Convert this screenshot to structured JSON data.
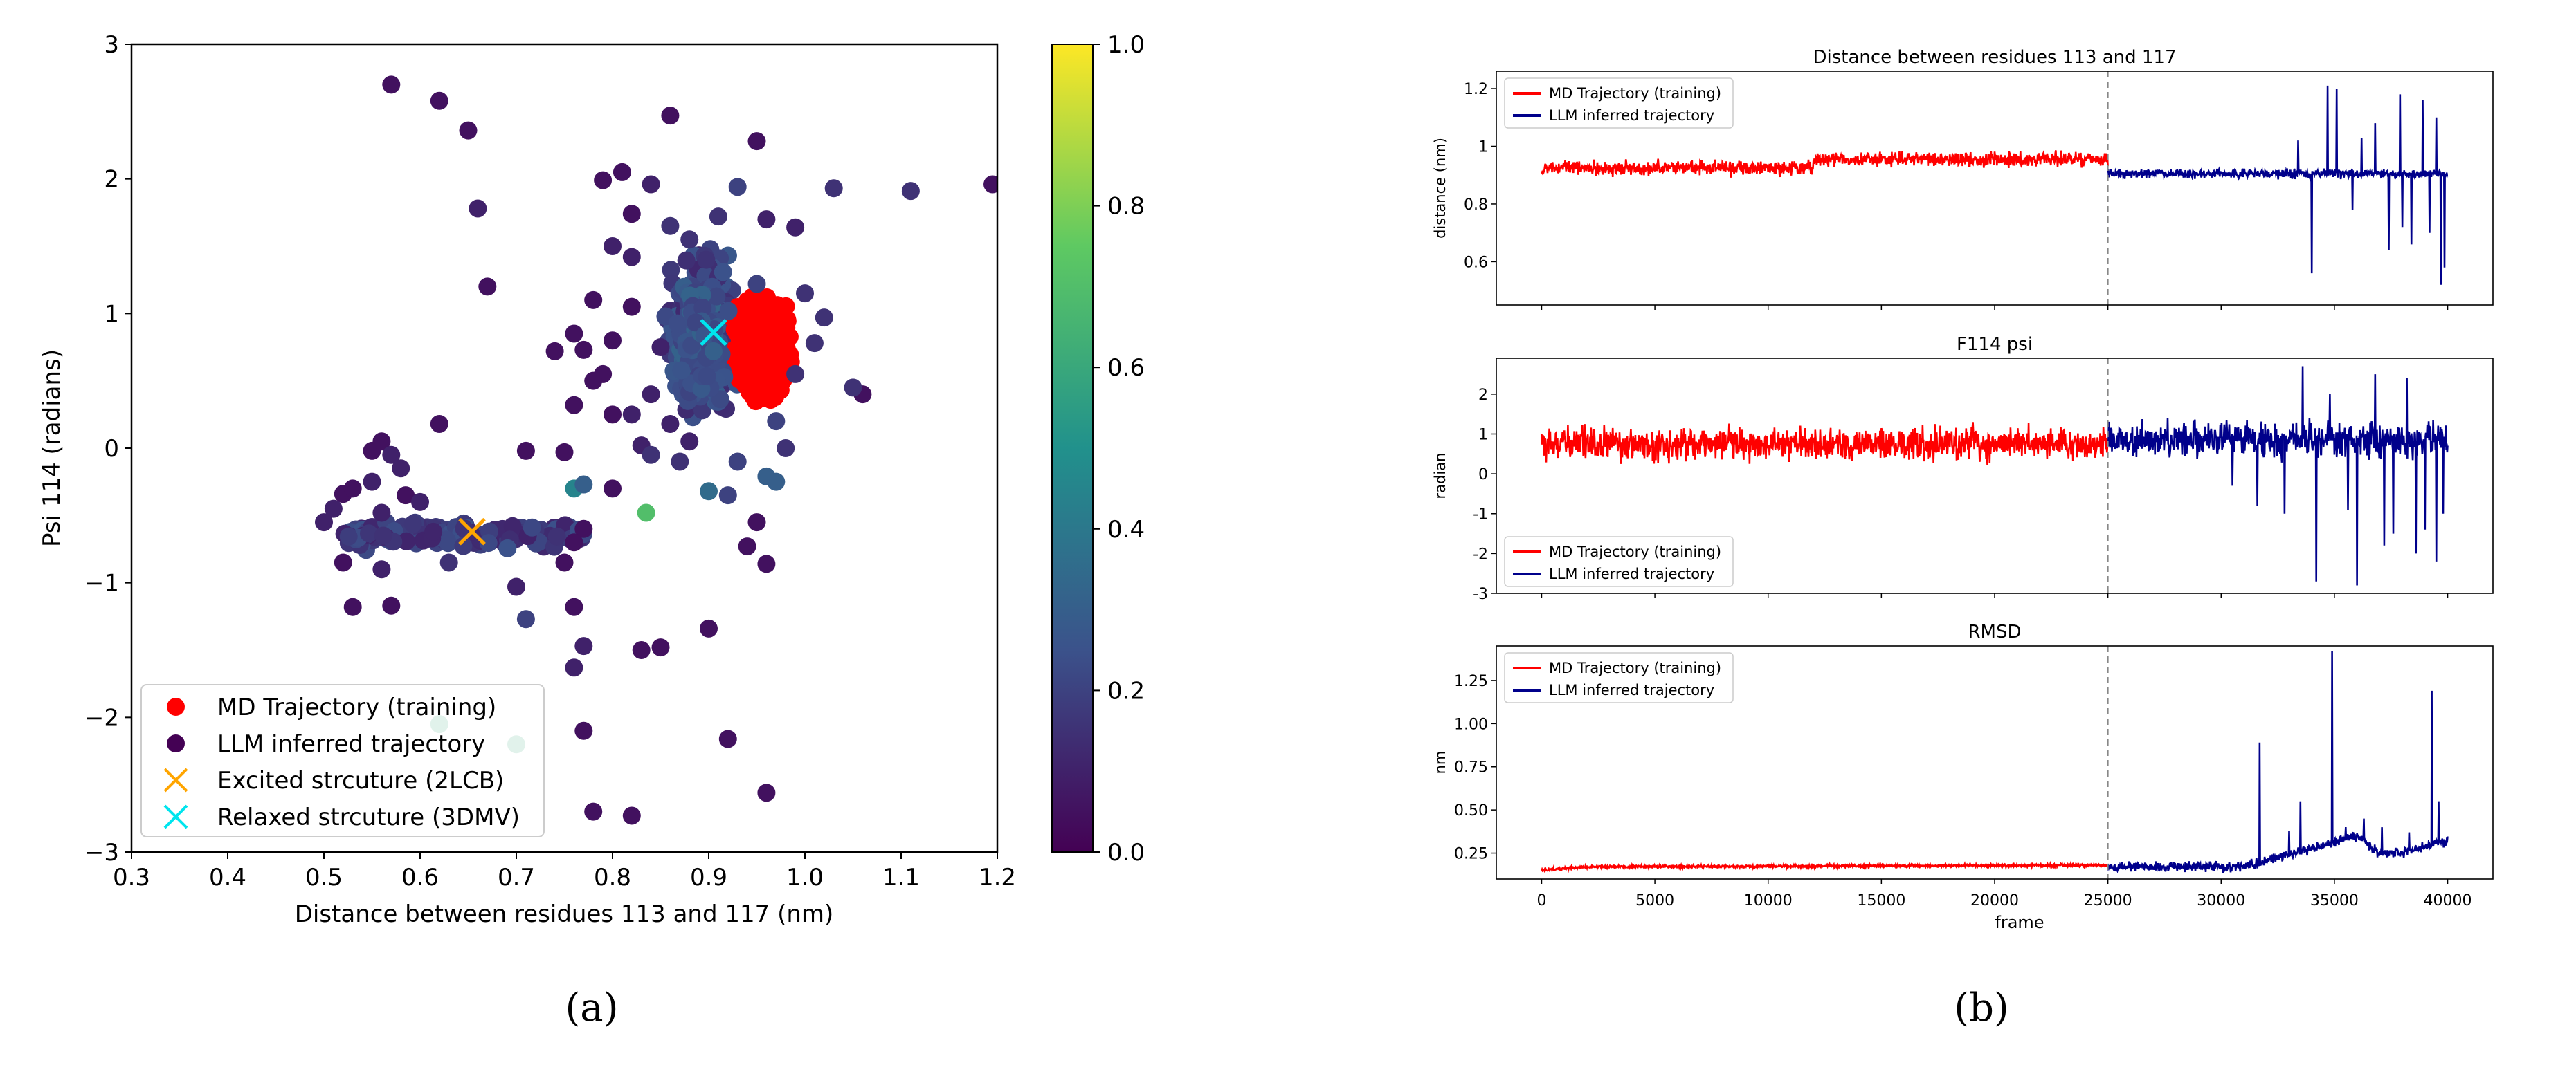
{
  "chart_data": [
    {
      "type": "scatter",
      "panel": "a",
      "caption": "(a)",
      "xlabel": "Distance between residues 113 and 117 (nm)",
      "ylabel": "Psi 114 (radians)",
      "xlim": [
        0.3,
        1.2
      ],
      "ylim": [
        -3,
        3
      ],
      "xticks": [
        "0.3",
        "0.4",
        "0.5",
        "0.6",
        "0.7",
        "0.8",
        "0.9",
        "1.0",
        "1.1",
        "1.2"
      ],
      "yticks": [
        "−3",
        "−2",
        "−1",
        "0",
        "1",
        "2",
        "3"
      ],
      "colorbar": {
        "range": [
          0.0,
          1.0
        ],
        "colormap": "viridis",
        "ticks": [
          "0.0",
          "0.2",
          "0.4",
          "0.6",
          "0.8",
          "1.0"
        ]
      },
      "legend_position": "lower-left",
      "legend": [
        {
          "label": "MD Trajectory (training)",
          "marker": "dot",
          "color": "#ff0000"
        },
        {
          "label": "LLM inferred trajectory",
          "marker": "dot",
          "color": "#440154"
        },
        {
          "label": "Excited strcuture (2LCB)",
          "marker": "x",
          "color": "#ffa500"
        },
        {
          "label": "Relaxed strcuture (3DMV)",
          "marker": "x",
          "color": "#00e5ee"
        }
      ],
      "md_cluster": {
        "x_range": [
          0.88,
          1.02
        ],
        "y_range": [
          -0.1,
          1.4
        ],
        "color": "#ff0000"
      },
      "markers": [
        {
          "name": "Excited strcuture (2LCB)",
          "x": 0.654,
          "y": -0.62,
          "color": "#ffa500"
        },
        {
          "name": "Relaxed strcuture (3DMV)",
          "x": 0.905,
          "y": 0.86,
          "color": "#00e5ee"
        }
      ],
      "llm_points": [
        {
          "x": 0.57,
          "y": 2.7,
          "c": 0.05
        },
        {
          "x": 0.62,
          "y": 2.58,
          "c": 0.05
        },
        {
          "x": 0.65,
          "y": 2.36,
          "c": 0.05
        },
        {
          "x": 0.66,
          "y": 1.78,
          "c": 0.1
        },
        {
          "x": 0.67,
          "y": 1.2,
          "c": 0.05
        },
        {
          "x": 0.86,
          "y": 2.47,
          "c": 0.05
        },
        {
          "x": 0.95,
          "y": 2.28,
          "c": 0.05
        },
        {
          "x": 1.11,
          "y": 1.91,
          "c": 0.15
        },
        {
          "x": 1.195,
          "y": 1.96,
          "c": 0.05
        },
        {
          "x": 1.03,
          "y": 1.93,
          "c": 0.15
        },
        {
          "x": 0.99,
          "y": 1.64,
          "c": 0.1
        },
        {
          "x": 1.06,
          "y": 0.4,
          "c": 0.05
        },
        {
          "x": 1.05,
          "y": 0.45,
          "c": 0.15
        },
        {
          "x": 1.02,
          "y": 0.97,
          "c": 0.15
        },
        {
          "x": 0.62,
          "y": 0.18,
          "c": 0.05
        },
        {
          "x": 0.74,
          "y": 0.72,
          "c": 0.05
        },
        {
          "x": 0.76,
          "y": 0.85,
          "c": 0.05
        },
        {
          "x": 0.77,
          "y": 0.73,
          "c": 0.05
        },
        {
          "x": 0.76,
          "y": 0.32,
          "c": 0.05
        },
        {
          "x": 0.79,
          "y": 0.55,
          "c": 0.05
        },
        {
          "x": 0.8,
          "y": 0.25,
          "c": 0.05
        },
        {
          "x": 0.71,
          "y": -0.02,
          "c": 0.05
        },
        {
          "x": 0.75,
          "y": -0.03,
          "c": 0.05
        },
        {
          "x": 0.8,
          "y": -0.3,
          "c": 0.05
        },
        {
          "x": 0.76,
          "y": -0.3,
          "c": 0.45
        },
        {
          "x": 0.835,
          "y": -0.48,
          "c": 0.7
        },
        {
          "x": 0.77,
          "y": -0.27,
          "c": 0.3
        },
        {
          "x": 0.9,
          "y": -0.32,
          "c": 0.35
        },
        {
          "x": 0.92,
          "y": -0.35,
          "c": 0.2
        },
        {
          "x": 0.96,
          "y": -0.21,
          "c": 0.3
        },
        {
          "x": 0.97,
          "y": -0.25,
          "c": 0.3
        },
        {
          "x": 0.95,
          "y": -0.55,
          "c": 0.05
        },
        {
          "x": 0.96,
          "y": -0.86,
          "c": 0.05
        },
        {
          "x": 0.94,
          "y": -0.73,
          "c": 0.05
        },
        {
          "x": 0.77,
          "y": -0.6,
          "c": 0.05
        },
        {
          "x": 0.76,
          "y": -0.7,
          "c": 0.05
        },
        {
          "x": 0.75,
          "y": -0.85,
          "c": 0.05
        },
        {
          "x": 0.7,
          "y": -1.03,
          "c": 0.1
        },
        {
          "x": 0.71,
          "y": -1.27,
          "c": 0.2
        },
        {
          "x": 0.76,
          "y": -1.63,
          "c": 0.1
        },
        {
          "x": 0.77,
          "y": -1.47,
          "c": 0.1
        },
        {
          "x": 0.76,
          "y": -1.18,
          "c": 0.05
        },
        {
          "x": 0.83,
          "y": -1.5,
          "c": 0.05
        },
        {
          "x": 0.85,
          "y": -1.48,
          "c": 0.05
        },
        {
          "x": 0.9,
          "y": -1.34,
          "c": 0.05
        },
        {
          "x": 0.77,
          "y": -2.1,
          "c": 0.05
        },
        {
          "x": 0.92,
          "y": -2.16,
          "c": 0.05
        },
        {
          "x": 0.62,
          "y": -2.05,
          "c": 0.6
        },
        {
          "x": 0.7,
          "y": -2.2,
          "c": 0.6
        },
        {
          "x": 0.82,
          "y": -2.73,
          "c": 0.05
        },
        {
          "x": 0.78,
          "y": -2.7,
          "c": 0.05
        },
        {
          "x": 0.96,
          "y": -2.56,
          "c": 0.05
        },
        {
          "x": 0.53,
          "y": -1.18,
          "c": 0.05
        },
        {
          "x": 0.57,
          "y": -1.17,
          "c": 0.05
        },
        {
          "x": 0.63,
          "y": -0.85,
          "c": 0.15
        },
        {
          "x": 0.52,
          "y": -0.85,
          "c": 0.05
        },
        {
          "x": 0.56,
          "y": -0.9,
          "c": 0.1
        },
        {
          "x": 0.585,
          "y": -0.35,
          "c": 0.05
        },
        {
          "x": 0.6,
          "y": -0.4,
          "c": 0.1
        },
        {
          "x": 0.52,
          "y": -0.34,
          "c": 0.05
        },
        {
          "x": 0.53,
          "y": -0.3,
          "c": 0.05
        },
        {
          "x": 0.55,
          "y": -0.02,
          "c": 0.05
        },
        {
          "x": 0.56,
          "y": 0.05,
          "c": 0.05
        },
        {
          "x": 0.57,
          "y": -0.05,
          "c": 0.1
        },
        {
          "x": 0.5,
          "y": -0.55,
          "c": 0.1
        },
        {
          "x": 0.51,
          "y": -0.45,
          "c": 0.1
        },
        {
          "x": 0.55,
          "y": -0.25,
          "c": 0.1
        },
        {
          "x": 0.56,
          "y": -0.48,
          "c": 0.1
        },
        {
          "x": 0.58,
          "y": -0.15,
          "c": 0.1
        },
        {
          "x": 0.83,
          "y": 0.02,
          "c": 0.1
        },
        {
          "x": 0.82,
          "y": 0.25,
          "c": 0.1
        },
        {
          "x": 0.84,
          "y": -0.05,
          "c": 0.15
        },
        {
          "x": 0.86,
          "y": 0.18,
          "c": 0.1
        },
        {
          "x": 0.87,
          "y": -0.1,
          "c": 0.15
        },
        {
          "x": 0.88,
          "y": 0.05,
          "c": 0.1
        },
        {
          "x": 0.79,
          "y": 1.99,
          "c": 0.05
        },
        {
          "x": 0.81,
          "y": 2.05,
          "c": 0.05
        },
        {
          "x": 0.82,
          "y": 1.74,
          "c": 0.05
        },
        {
          "x": 0.93,
          "y": 1.94,
          "c": 0.2
        },
        {
          "x": 0.91,
          "y": 1.72,
          "c": 0.15
        },
        {
          "x": 0.84,
          "y": 1.96,
          "c": 0.1
        },
        {
          "x": 0.86,
          "y": 1.65,
          "c": 0.15
        },
        {
          "x": 0.88,
          "y": 1.55,
          "c": 0.15
        },
        {
          "x": 0.96,
          "y": 1.7,
          "c": 0.1
        },
        {
          "x": 0.8,
          "y": 1.5,
          "c": 0.1
        },
        {
          "x": 0.82,
          "y": 1.42,
          "c": 0.1
        },
        {
          "x": 0.95,
          "y": 1.22,
          "c": 0.2
        },
        {
          "x": 1.0,
          "y": 1.15,
          "c": 0.15
        },
        {
          "x": 1.01,
          "y": 0.78,
          "c": 0.15
        },
        {
          "x": 0.99,
          "y": 0.55,
          "c": 0.15
        },
        {
          "x": 0.97,
          "y": 0.2,
          "c": 0.2
        },
        {
          "x": 0.98,
          "y": 0.0,
          "c": 0.15
        },
        {
          "x": 0.93,
          "y": -0.1,
          "c": 0.2
        },
        {
          "x": 0.78,
          "y": 0.5,
          "c": 0.05
        },
        {
          "x": 0.8,
          "y": 0.8,
          "c": 0.05
        },
        {
          "x": 0.82,
          "y": 1.05,
          "c": 0.05
        },
        {
          "x": 0.78,
          "y": 1.1,
          "c": 0.05
        },
        {
          "x": 0.85,
          "y": 0.75,
          "c": 0.1
        },
        {
          "x": 0.84,
          "y": 0.4,
          "c": 0.1
        }
      ]
    },
    {
      "type": "line",
      "panel": "b",
      "caption": "(b)",
      "xlabel": "frame",
      "xlim": [
        -2000,
        42000
      ],
      "xticks": [
        0,
        5000,
        10000,
        15000,
        20000,
        25000,
        30000,
        35000,
        40000
      ],
      "split_frame": 25000,
      "series_colors": {
        "md": "#ff0000",
        "llm": "#00008b"
      },
      "subplots": [
        {
          "title": "Distance between residues 113 and 117",
          "ylabel": "distance (nm)",
          "ylim": [
            0.45,
            1.26
          ],
          "yticks": [
            0.6,
            0.8,
            1.0,
            1.2
          ],
          "legend_position": "upper-left",
          "legend": [
            "MD Trajectory (training)",
            "LLM inferred trajectory"
          ],
          "md_profile": [
            {
              "x": 0,
              "y": 0.925
            },
            {
              "x": 12000,
              "y": 0.925
            },
            {
              "x": 12000,
              "y": 0.955
            },
            {
              "x": 25000,
              "y": 0.955
            }
          ],
          "md_noise": 0.035,
          "llm_profile": [
            {
              "x": 25000,
              "y": 0.905
            },
            {
              "x": 40000,
              "y": 0.905
            }
          ],
          "llm_noise": 0.022,
          "llm_spikes": [
            {
              "x": 34000,
              "y": 0.56
            },
            {
              "x": 34700,
              "y": 1.21
            },
            {
              "x": 35100,
              "y": 1.2
            },
            {
              "x": 35800,
              "y": 0.78
            },
            {
              "x": 36800,
              "y": 1.08
            },
            {
              "x": 37400,
              "y": 0.64
            },
            {
              "x": 37900,
              "y": 1.18
            },
            {
              "x": 38400,
              "y": 0.66
            },
            {
              "x": 38900,
              "y": 1.16
            },
            {
              "x": 39200,
              "y": 0.7
            },
            {
              "x": 39500,
              "y": 1.1
            },
            {
              "x": 39700,
              "y": 0.52
            },
            {
              "x": 39850,
              "y": 0.58
            },
            {
              "x": 33400,
              "y": 1.02
            },
            {
              "x": 36200,
              "y": 1.03
            },
            {
              "x": 38000,
              "y": 0.72
            }
          ]
        },
        {
          "title": "F114 psi",
          "ylabel": "radian",
          "ylim": [
            -3,
            2.9
          ],
          "yticks": [
            -3,
            -2,
            -1,
            0,
            1,
            2
          ],
          "legend_position": "lower-left",
          "legend": [
            "MD Trajectory (training)",
            "LLM inferred trajectory"
          ],
          "md_profile": [
            {
              "x": 0,
              "y": 0.75
            },
            {
              "x": 25000,
              "y": 0.75
            }
          ],
          "md_noise": 0.6,
          "llm_profile": [
            {
              "x": 25000,
              "y": 0.85
            },
            {
              "x": 40000,
              "y": 0.85
            }
          ],
          "llm_noise": 0.6,
          "llm_spikes": [
            {
              "x": 31600,
              "y": -0.8
            },
            {
              "x": 32800,
              "y": -1.0
            },
            {
              "x": 33600,
              "y": 2.7
            },
            {
              "x": 34200,
              "y": -2.7
            },
            {
              "x": 35600,
              "y": -0.9
            },
            {
              "x": 36000,
              "y": -2.8
            },
            {
              "x": 36800,
              "y": 2.5
            },
            {
              "x": 37600,
              "y": -1.5
            },
            {
              "x": 38200,
              "y": 2.4
            },
            {
              "x": 38600,
              "y": -2.0
            },
            {
              "x": 39000,
              "y": -1.4
            },
            {
              "x": 39500,
              "y": -2.2
            },
            {
              "x": 39800,
              "y": -1.0
            },
            {
              "x": 34800,
              "y": 2.0
            },
            {
              "x": 37200,
              "y": -1.8
            },
            {
              "x": 30500,
              "y": -0.3
            }
          ]
        },
        {
          "title": "RMSD",
          "ylabel": "nm",
          "ylim": [
            0.1,
            1.45
          ],
          "yticks": [
            0.25,
            0.5,
            0.75,
            1.0,
            1.25
          ],
          "ytick_labels": [
            "0.25",
            "0.50",
            "0.75",
            "1.00",
            "1.25"
          ],
          "legend_position": "upper-left",
          "legend": [
            "MD Trajectory (training)",
            "LLM inferred trajectory"
          ],
          "md_profile": [
            {
              "x": 0,
              "y": 0.15
            },
            {
              "x": 2000,
              "y": 0.17
            },
            {
              "x": 25000,
              "y": 0.18
            }
          ],
          "md_noise": 0.012,
          "llm_profile": [
            {
              "x": 25000,
              "y": 0.17
            },
            {
              "x": 31000,
              "y": 0.17
            },
            {
              "x": 33000,
              "y": 0.24
            },
            {
              "x": 36000,
              "y": 0.35
            },
            {
              "x": 37000,
              "y": 0.25
            },
            {
              "x": 38000,
              "y": 0.25
            },
            {
              "x": 39800,
              "y": 0.32
            }
          ],
          "llm_noise": 0.04,
          "llm_spikes": [
            {
              "x": 31700,
              "y": 0.89
            },
            {
              "x": 33500,
              "y": 0.55
            },
            {
              "x": 34900,
              "y": 1.42
            },
            {
              "x": 36300,
              "y": 0.45
            },
            {
              "x": 37100,
              "y": 0.4
            },
            {
              "x": 38300,
              "y": 0.37
            },
            {
              "x": 39300,
              "y": 1.19
            },
            {
              "x": 39600,
              "y": 0.55
            },
            {
              "x": 35500,
              "y": 0.4
            },
            {
              "x": 33000,
              "y": 0.38
            }
          ]
        }
      ]
    }
  ]
}
